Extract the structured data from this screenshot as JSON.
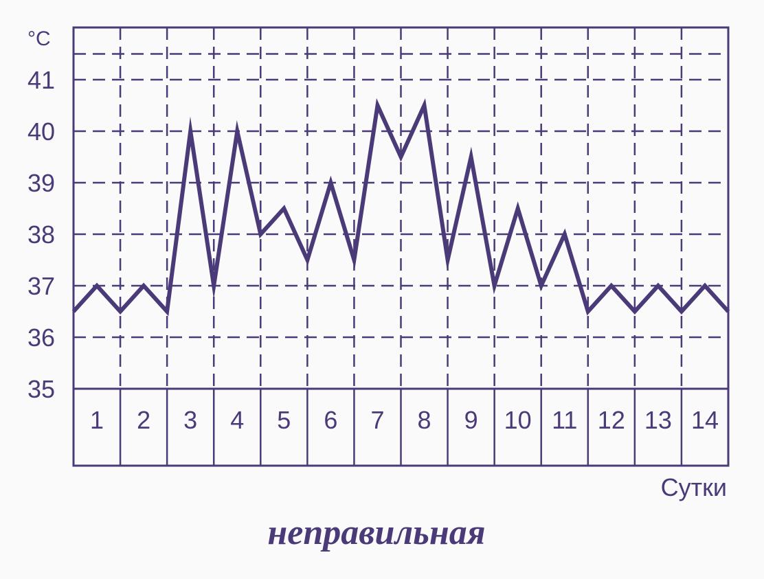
{
  "chart_data": {
    "type": "line",
    "title": "неправильная",
    "xlabel": "Сутки",
    "ylabel": "°C",
    "x_categories": [
      "1",
      "2",
      "3",
      "4",
      "5",
      "6",
      "7",
      "8",
      "9",
      "10",
      "11",
      "12",
      "13",
      "14"
    ],
    "y_ticks": [
      35,
      36,
      37,
      38,
      39,
      40,
      41
    ],
    "ylim": [
      35,
      42
    ],
    "grid": true,
    "series": [
      {
        "x": [
          0.0,
          0.5,
          1.0,
          1.5,
          2.0,
          2.5,
          3.0,
          3.5,
          4.0,
          4.5,
          5.0,
          5.5,
          6.0,
          6.5,
          7.0,
          7.5,
          8.0,
          8.5,
          9.0,
          9.5,
          10.0,
          10.5,
          11.0,
          11.5,
          12.0,
          12.5,
          13.0,
          13.5,
          14.0
        ],
        "values": [
          36.5,
          37.0,
          36.5,
          37.0,
          36.5,
          40.0,
          37.0,
          40.0,
          38.0,
          38.5,
          37.5,
          39.0,
          37.5,
          40.5,
          39.5,
          40.5,
          37.5,
          39.5,
          37.0,
          38.5,
          37.0,
          38.0,
          36.5,
          37.0,
          36.5,
          37.0,
          36.5,
          37.0,
          36.5
        ]
      }
    ]
  },
  "colors": {
    "ink": "#4a3a78",
    "background": "#fafafa"
  }
}
